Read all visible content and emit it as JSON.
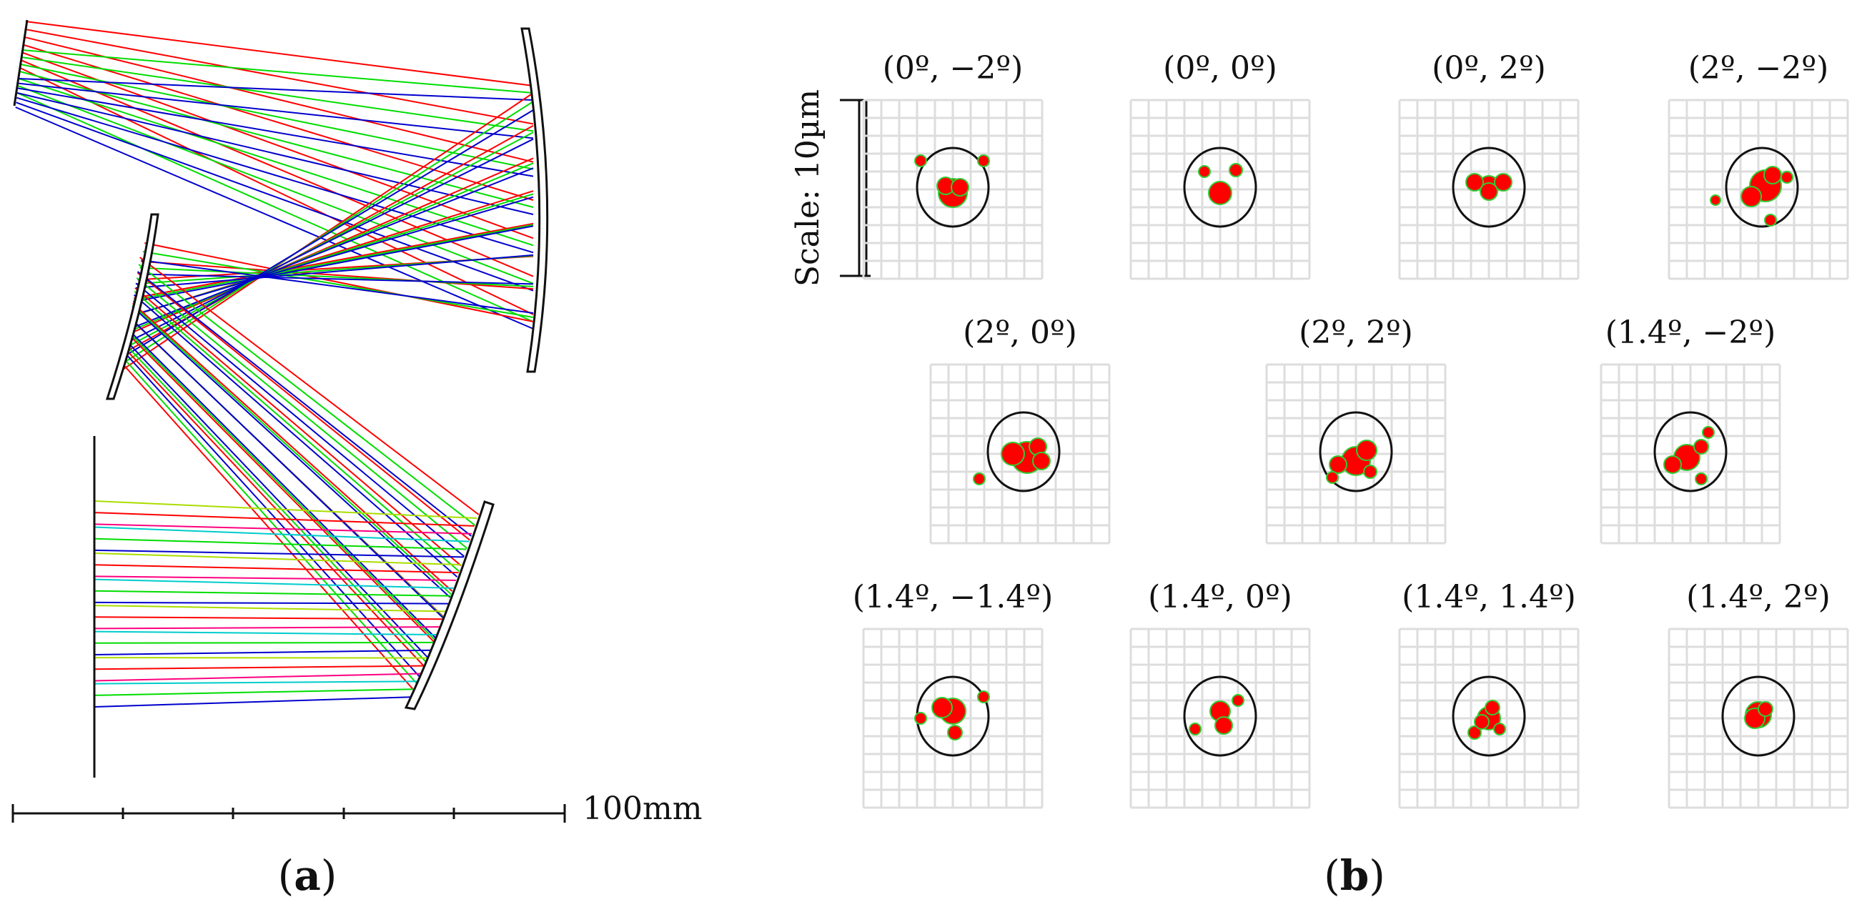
{
  "panel_a": {
    "label": "a",
    "scale_bar_text": "100mm",
    "colors": {
      "red": "#ff0000",
      "green": "#00dd00",
      "blue": "#0000cc",
      "magenta": "#ff0080",
      "cyan": "#00cccc",
      "yellow": "#aadd00"
    }
  },
  "panel_b": {
    "label": "b",
    "scale_text": "Scale: 10µm",
    "spots": [
      {
        "label": "(0º, −2º)"
      },
      {
        "label": "(0º, 0º)"
      },
      {
        "label": "(0º, 2º)"
      },
      {
        "label": "(2º, −2º)"
      },
      {
        "label": "(2º, 0º)"
      },
      {
        "label": "(2º, 2º)"
      },
      {
        "label": "(1.4º, −2º)"
      },
      {
        "label": "(1.4º, −1.4º)"
      },
      {
        "label": "(1.4º, 0º)"
      },
      {
        "label": "(1.4º, 1.4º)"
      },
      {
        "label": "(1.4º, 2º)"
      }
    ],
    "colors": {
      "grid": "#dddddd",
      "spot": "#ff0000",
      "spot_edge": "#33cc33",
      "circle": "#111111"
    }
  }
}
